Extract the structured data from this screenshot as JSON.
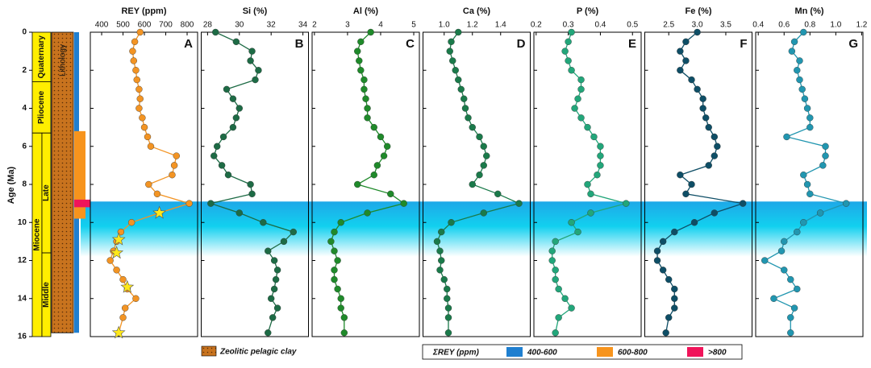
{
  "chart_data": [
    {
      "type": "line",
      "title": "REY (ppm)",
      "letter": "A",
      "color": "#f39423",
      "ylabel": "Age (Ma)",
      "ylim": [
        0,
        16
      ],
      "yticks": [
        0,
        2,
        4,
        6,
        8,
        10,
        12,
        14,
        16
      ],
      "xlim": [
        347,
        849
      ],
      "xticks": [
        400,
        500,
        600,
        700,
        800
      ],
      "y": [
        0,
        0.5,
        1,
        1.5,
        2,
        2.5,
        3,
        3.5,
        4,
        4.5,
        5,
        5.5,
        6,
        6.5,
        7,
        7.5,
        8,
        8.5,
        9,
        9.5,
        10,
        10.5,
        11,
        11.5,
        12,
        12.5,
        13,
        13.5,
        14,
        14.5,
        15,
        15.8
      ],
      "values": [
        580,
        555,
        545,
        550,
        560,
        565,
        575,
        580,
        575,
        590,
        600,
        615,
        630,
        750,
        740,
        730,
        620,
        660,
        810,
        670,
        540,
        490,
        470,
        455,
        440,
        470,
        500,
        520,
        560,
        510,
        500,
        480
      ],
      "stars": {
        "color": "#ffe81a",
        "y": [
          9.5,
          10.9,
          11.6,
          13.4,
          15.8
        ],
        "values": [
          670,
          480,
          470,
          520,
          480
        ]
      }
    },
    {
      "type": "line",
      "title": "Si (%)",
      "letter": "B",
      "color": "#1d6b45",
      "ylim": [
        0,
        16
      ],
      "xlim": [
        27.6,
        34.35
      ],
      "xticks": [
        28,
        30,
        32,
        34
      ],
      "y": [
        0,
        0.5,
        1,
        1.5,
        2,
        2.5,
        3,
        3.5,
        4,
        4.5,
        5,
        5.5,
        6,
        6.5,
        7,
        7.5,
        8,
        8.5,
        9,
        9.5,
        10,
        10.5,
        11,
        11.5,
        12,
        12.5,
        13,
        13.5,
        14,
        14.5,
        15,
        15.8
      ],
      "values": [
        28.5,
        29.8,
        30.8,
        30.7,
        31.2,
        31,
        29.2,
        29.6,
        30,
        29.8,
        29.6,
        29,
        28.6,
        28.4,
        28.9,
        29.3,
        30.7,
        30.8,
        28.2,
        30,
        31.5,
        33.4,
        32.8,
        31.8,
        32.2,
        32.4,
        32.3,
        32.2,
        32,
        32.4,
        32.1,
        31.8
      ]
    },
    {
      "type": "line",
      "title": "Al (%)",
      "letter": "C",
      "color": "#1f8a2a",
      "ylim": [
        0,
        16
      ],
      "xlim": [
        1.93,
        5.17
      ],
      "xticks": [
        2,
        3,
        4,
        5
      ],
      "y": [
        0,
        0.5,
        1,
        1.5,
        2,
        2.5,
        3,
        3.5,
        4,
        4.5,
        5,
        5.5,
        6,
        6.5,
        7,
        7.5,
        8,
        8.5,
        9,
        9.5,
        10,
        10.5,
        11,
        11.5,
        12,
        12.5,
        13,
        13.5,
        14,
        14.5,
        15,
        15.8
      ],
      "values": [
        3.7,
        3.4,
        3.3,
        3.35,
        3.4,
        3.5,
        3.5,
        3.55,
        3.6,
        3.6,
        3.8,
        4,
        4.2,
        4.1,
        3.9,
        3.8,
        3.3,
        4.3,
        4.7,
        3.6,
        2.8,
        2.6,
        2.5,
        2.6,
        2.7,
        2.6,
        2.6,
        2.7,
        2.8,
        2.8,
        2.9,
        2.9
      ]
    },
    {
      "type": "line",
      "title": "Ca (%)",
      "letter": "D",
      "color": "#1a7a4a",
      "ylim": [
        0,
        16
      ],
      "xlim": [
        0.85,
        1.61
      ],
      "xticks": [
        {
          "value": 1,
          "label": "1.0"
        },
        1.2,
        1.4
      ],
      "y": [
        0,
        0.5,
        1,
        1.5,
        2,
        2.5,
        3,
        3.5,
        4,
        4.5,
        5,
        5.5,
        6,
        6.5,
        7,
        7.5,
        8,
        8.5,
        9,
        9.5,
        10,
        10.5,
        11,
        11.5,
        12,
        12.5,
        13,
        13.5,
        14,
        14.5,
        15,
        15.8
      ],
      "values": [
        1.1,
        1.05,
        1.04,
        1.06,
        1.08,
        1.1,
        1.12,
        1.14,
        1.15,
        1.17,
        1.2,
        1.25,
        1.28,
        1.3,
        1.28,
        1.25,
        1.2,
        1.38,
        1.53,
        1.28,
        1.05,
        0.98,
        0.95,
        0.97,
        0.98,
        0.97,
        1.0,
        1.02,
        1.02,
        1.03,
        1.03,
        1.03
      ]
    },
    {
      "type": "line",
      "title": "P (%)",
      "letter": "E",
      "color": "#22a67a",
      "ylim": [
        0,
        16
      ],
      "xlim": [
        0.193,
        0.527
      ],
      "xticks": [
        0.2,
        0.3,
        0.4,
        0.5
      ],
      "y": [
        0,
        0.5,
        1,
        1.5,
        2,
        2.5,
        3,
        3.5,
        4,
        4.5,
        5,
        5.5,
        6,
        6.5,
        7,
        7.5,
        8,
        8.5,
        9,
        9.5,
        10,
        10.5,
        11,
        11.5,
        12,
        12.5,
        13,
        13.5,
        14,
        14.5,
        15,
        15.8
      ],
      "values": [
        0.31,
        0.3,
        0.29,
        0.3,
        0.31,
        0.34,
        0.34,
        0.33,
        0.32,
        0.34,
        0.36,
        0.38,
        0.4,
        0.4,
        0.4,
        0.39,
        0.36,
        0.37,
        0.48,
        0.37,
        0.31,
        0.33,
        0.26,
        0.25,
        0.25,
        0.26,
        0.26,
        0.27,
        0.29,
        0.31,
        0.27,
        0.26
      ]
    },
    {
      "type": "line",
      "title": "Fe (%)",
      "letter": "F",
      "color": "#0e4e66",
      "ylim": [
        0,
        16
      ],
      "xlim": [
        2.08,
        3.96
      ],
      "xticks": [
        2.5,
        {
          "value": 3,
          "label": "3.0"
        },
        3.5
      ],
      "y": [
        0,
        0.5,
        1,
        1.5,
        2,
        2.5,
        3,
        3.5,
        4,
        4.5,
        5,
        5.5,
        6,
        6.5,
        7,
        7.5,
        8,
        8.5,
        9,
        9.5,
        10,
        10.5,
        11,
        11.5,
        12,
        12.5,
        13,
        13.5,
        14,
        14.5,
        15,
        15.8
      ],
      "values": [
        3.0,
        2.8,
        2.7,
        2.8,
        2.7,
        2.9,
        3.0,
        3.1,
        3.1,
        3.15,
        3.2,
        3.3,
        3.35,
        3.3,
        3.2,
        2.7,
        2.9,
        2.8,
        3.8,
        3.3,
        2.95,
        2.6,
        2.4,
        2.3,
        2.3,
        2.4,
        2.5,
        2.6,
        2.6,
        2.6,
        2.5,
        2.45
      ]
    },
    {
      "type": "line",
      "title": "Mn (%)",
      "letter": "G",
      "color": "#2196b0",
      "ylim": [
        0,
        16
      ],
      "xlim": [
        0.38,
        1.21
      ],
      "xticks": [
        0.4,
        0.6,
        0.8,
        {
          "value": 1,
          "label": "1.0"
        },
        1.2
      ],
      "y": [
        0,
        0.5,
        1,
        1.5,
        2,
        2.5,
        3,
        3.5,
        4,
        4.5,
        5,
        5.5,
        6,
        6.5,
        7,
        7.5,
        8,
        8.5,
        9,
        9.5,
        10,
        10.5,
        11,
        11.5,
        12,
        12.5,
        13,
        13.5,
        14,
        14.5,
        15,
        15.8
      ],
      "values": [
        0.75,
        0.68,
        0.66,
        0.72,
        0.7,
        0.72,
        0.74,
        0.76,
        0.78,
        0.8,
        0.8,
        0.62,
        0.92,
        0.92,
        0.9,
        0.75,
        0.78,
        0.8,
        1.08,
        0.88,
        0.75,
        0.7,
        0.6,
        0.58,
        0.45,
        0.6,
        0.65,
        0.7,
        0.52,
        0.68,
        0.65,
        0.65
      ]
    }
  ],
  "highlight": {
    "from": 8.9,
    "to": 11.8
  },
  "epochs": [
    {
      "name": "Quaternary",
      "from": 0,
      "to": 2.6
    },
    {
      "name": "Pliocene",
      "from": 2.6,
      "to": 5.3
    },
    {
      "name": "Miocene",
      "from": 5.3,
      "to": 16
    }
  ],
  "subepochs": [
    {
      "name": "Late",
      "from": 5.3,
      "to": 11.6
    },
    {
      "name": "Middle",
      "from": 11.6,
      "to": 16
    }
  ],
  "lithology": {
    "label": "Lithology",
    "from": 0,
    "to": 15.8,
    "legend": "Zeolitic pelagic clay"
  },
  "rey_ranges": {
    "title": "ΣREY (ppm)",
    "items": [
      {
        "name": "400-600",
        "color": "#1f7fd0",
        "from": 0,
        "to": 15.8
      },
      {
        "name": "600-800",
        "color": "#f7941d",
        "from": 5.2,
        "to": 9.8
      },
      {
        "name": ">800",
        "color": "#f0145a",
        "from": 8.8,
        "to": 9.2
      }
    ]
  }
}
